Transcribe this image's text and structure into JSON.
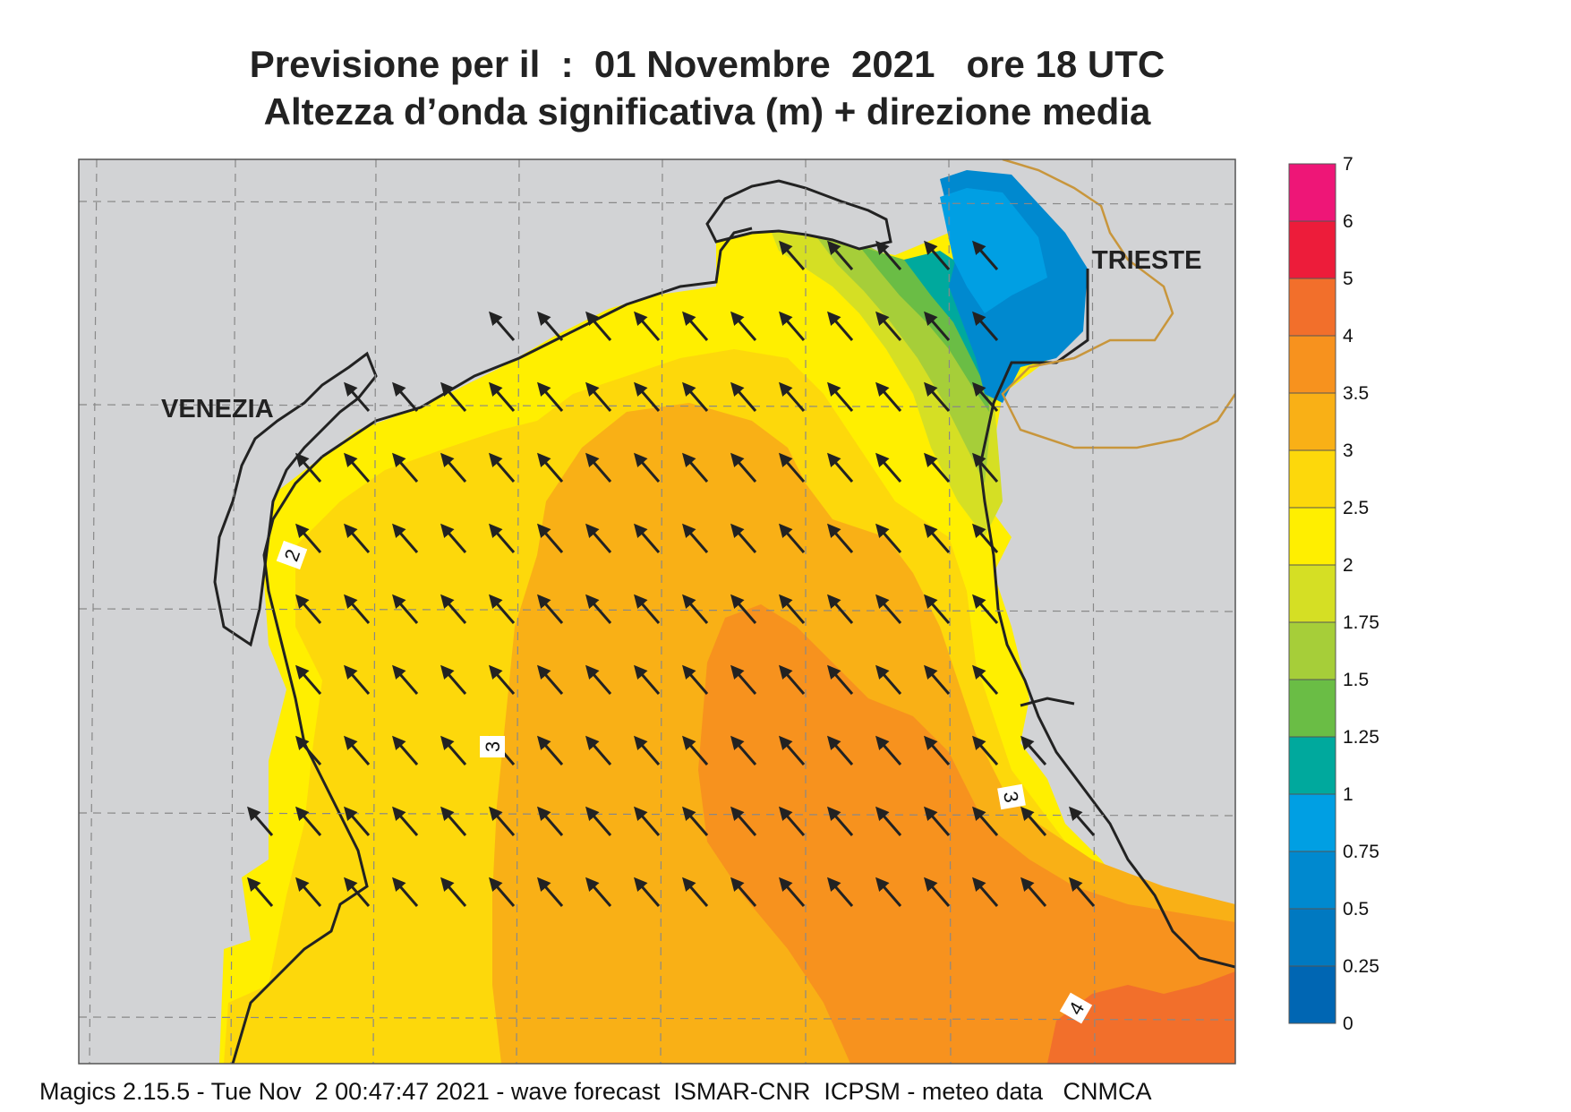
{
  "header": {
    "title_line1": "Previsione per il  :  01 Novembre  2021   ore 18 UTC",
    "title_line2": "Altezza d’onda significativa (m) + direzione media"
  },
  "map": {
    "places": [
      {
        "name": "VENEZIA"
      },
      {
        "name": "TRIESTE"
      }
    ],
    "contour_labels": [
      "2",
      "3",
      "3",
      "4"
    ],
    "mean_direction": "NW",
    "colors": {
      "land": "#d2d3d5",
      "sea_frame": "#ffffff",
      "coast": "#222222",
      "border": "#c8963c",
      "arrow": "#222222"
    }
  },
  "colorbar": {
    "levels": [
      {
        "label": "7",
        "color": "#ee1677"
      },
      {
        "label": "6",
        "color": "#ed1c3a"
      },
      {
        "label": "5",
        "color": "#f26f2b"
      },
      {
        "label": "4",
        "color": "#f7921e"
      },
      {
        "label": "3.5",
        "color": "#f9b016"
      },
      {
        "label": "3",
        "color": "#fdd80b"
      },
      {
        "label": "2.5",
        "color": "#ffef00"
      },
      {
        "label": "2",
        "color": "#d5df24"
      },
      {
        "label": "1.75",
        "color": "#a6ce39"
      },
      {
        "label": "1.5",
        "color": "#6abd45"
      },
      {
        "label": "1.25",
        "color": "#00a99d"
      },
      {
        "label": "1",
        "color": "#009fe3"
      },
      {
        "label": "0.75",
        "color": "#0089cf"
      },
      {
        "label": "0.5",
        "color": "#0079c1"
      },
      {
        "label": "0.25",
        "color": "#0066b3"
      },
      {
        "label": "0",
        "color": ""
      }
    ]
  },
  "footer": {
    "text": "Magics 2.15.5 - Tue Nov  2 00:47:47 2021 - wave forecast  ISMAR-CNR  ICPSM - meteo data   CNMCA"
  }
}
